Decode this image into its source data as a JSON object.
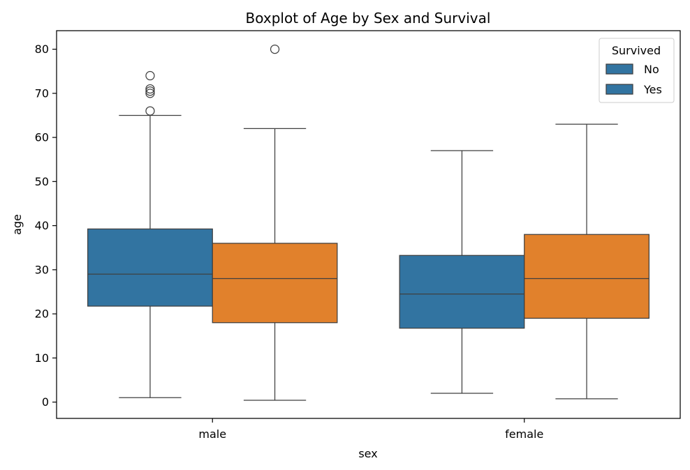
{
  "chart_data": {
    "type": "boxplot",
    "title": "Boxplot of Age by Sex and Survival",
    "xlabel": "sex",
    "ylabel": "age",
    "ylim": [
      -3.7,
      84.2
    ],
    "yticks": [
      0,
      10,
      20,
      30,
      40,
      50,
      60,
      70,
      80
    ],
    "categories": [
      "male",
      "female"
    ],
    "legend": {
      "title": "Survived",
      "placement": "top-right",
      "entries": [
        "No",
        "Yes"
      ],
      "swatch_color": "#3274a1"
    },
    "series": [
      {
        "name": "No",
        "color": "#3274a1",
        "boxes": [
          {
            "category": "male",
            "whisker_low": 1,
            "q1": 21.75,
            "median": 29,
            "q3": 39.25,
            "whisker_high": 65,
            "outliers": [
              66,
              70,
              70.5,
              71,
              74
            ]
          },
          {
            "category": "female",
            "whisker_low": 2,
            "q1": 16.75,
            "median": 24.5,
            "q3": 33.25,
            "whisker_high": 57,
            "outliers": []
          }
        ]
      },
      {
        "name": "Yes",
        "color": "#e1812c",
        "boxes": [
          {
            "category": "male",
            "whisker_low": 0.42,
            "q1": 18,
            "median": 28,
            "q3": 36,
            "whisker_high": 62,
            "outliers": [
              80
            ]
          },
          {
            "category": "female",
            "whisker_low": 0.75,
            "q1": 19,
            "median": 28,
            "q3": 38,
            "whisker_high": 63,
            "outliers": []
          }
        ]
      }
    ]
  }
}
